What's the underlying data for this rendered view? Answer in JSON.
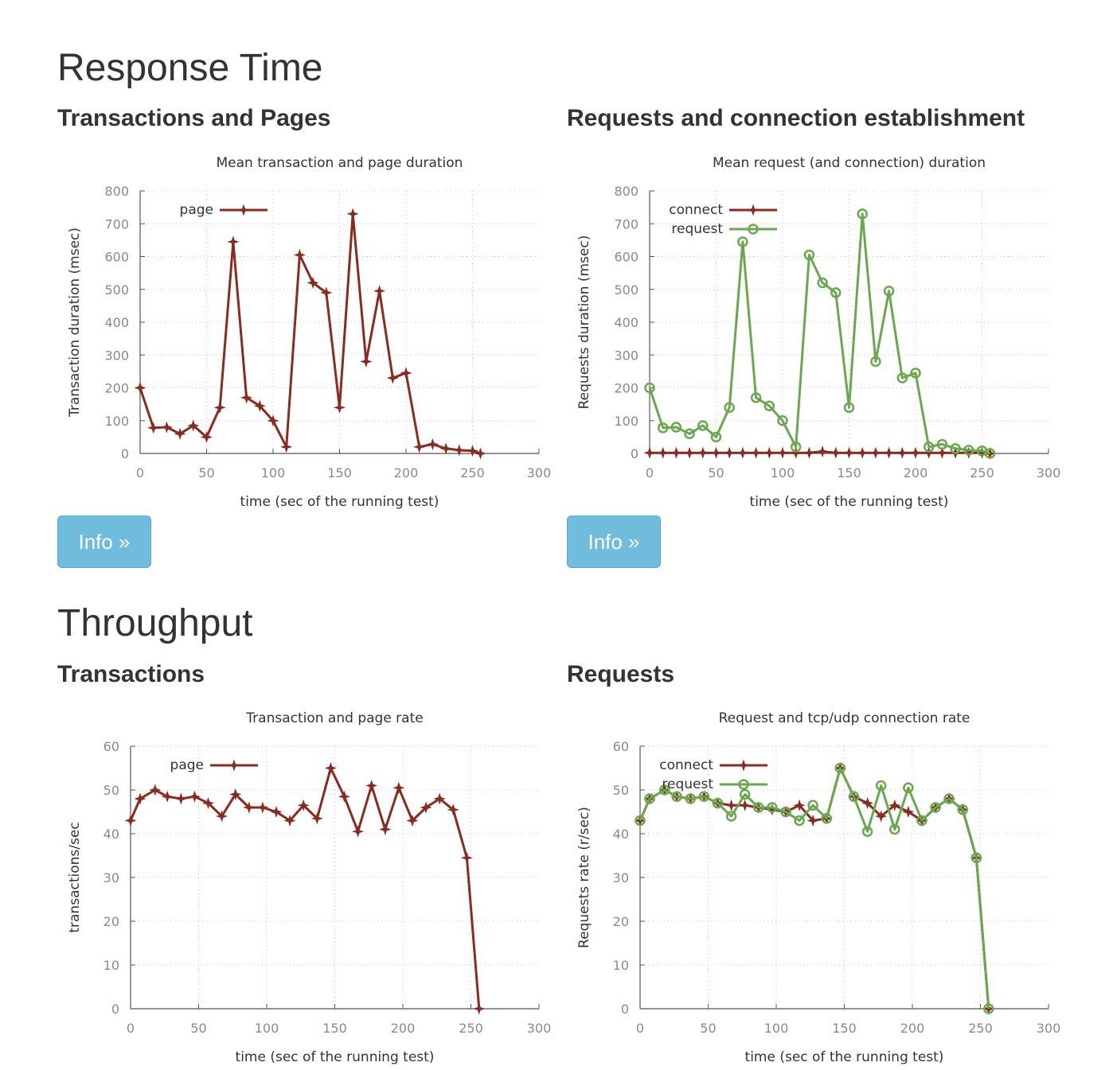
{
  "sections": {
    "response_time": "Response Time",
    "throughput": "Throughput"
  },
  "panels": {
    "transactions_pages": "Transactions and Pages",
    "requests_connection": "Requests and connection establishment",
    "transactions": "Transactions",
    "requests": "Requests"
  },
  "buttons": {
    "info_label": "Info »"
  },
  "colors": {
    "page": "#8b2a1e",
    "connect": "#8b2a1e",
    "request": "#6aa84f"
  },
  "chart_data": [
    {
      "type": "line",
      "title": "Mean transaction and page duration",
      "xlabel": "time (sec of the running test)",
      "ylabel": "Transaction duration (msec)",
      "xlim": [
        0,
        300
      ],
      "ylim": [
        0,
        800
      ],
      "xticks": [
        0,
        50,
        100,
        150,
        200,
        250,
        300
      ],
      "yticks": [
        0,
        100,
        200,
        300,
        400,
        500,
        600,
        700,
        800
      ],
      "grid": true,
      "legend": "top-left",
      "x": [
        0,
        10,
        20,
        30,
        40,
        50,
        60,
        70,
        80,
        90,
        100,
        110,
        120,
        130,
        140,
        150,
        160,
        170,
        180,
        190,
        200,
        210,
        220,
        230,
        240,
        250,
        256
      ],
      "series": [
        {
          "name": "page",
          "color": "#8b2a1e",
          "marker": "star",
          "values": [
            200,
            78,
            80,
            60,
            85,
            50,
            140,
            645,
            170,
            145,
            100,
            20,
            605,
            520,
            490,
            140,
            730,
            280,
            495,
            230,
            245,
            20,
            28,
            15,
            10,
            8,
            0
          ]
        }
      ]
    },
    {
      "type": "line",
      "title": "Mean request (and connection) duration",
      "xlabel": "time (sec of the running test)",
      "ylabel": "Requests duration (msec)",
      "xlim": [
        0,
        300
      ],
      "ylim": [
        0,
        800
      ],
      "xticks": [
        0,
        50,
        100,
        150,
        200,
        250,
        300
      ],
      "yticks": [
        0,
        100,
        200,
        300,
        400,
        500,
        600,
        700,
        800
      ],
      "grid": true,
      "legend": "top-left",
      "x": [
        0,
        10,
        20,
        30,
        40,
        50,
        60,
        70,
        80,
        90,
        100,
        110,
        120,
        130,
        140,
        150,
        160,
        170,
        180,
        190,
        200,
        210,
        220,
        230,
        240,
        250,
        256
      ],
      "series": [
        {
          "name": "connect",
          "color": "#8b2a1e",
          "marker": "star",
          "values": [
            2,
            2,
            2,
            2,
            2,
            2,
            2,
            2,
            2,
            2,
            2,
            2,
            2,
            6,
            2,
            2,
            2,
            2,
            2,
            2,
            2,
            2,
            2,
            2,
            2,
            2,
            0
          ]
        },
        {
          "name": "request",
          "color": "#6aa84f",
          "marker": "circle",
          "values": [
            200,
            78,
            80,
            60,
            85,
            50,
            140,
            645,
            170,
            145,
            100,
            20,
            605,
            520,
            490,
            140,
            730,
            280,
            495,
            230,
            245,
            20,
            28,
            15,
            10,
            8,
            0
          ]
        }
      ]
    },
    {
      "type": "line",
      "title": "Transaction and page rate",
      "xlabel": "time (sec of the running test)",
      "ylabel": "transactions/sec",
      "xlim": [
        0,
        300
      ],
      "ylim": [
        0,
        60
      ],
      "xticks": [
        0,
        50,
        100,
        150,
        200,
        250,
        300
      ],
      "yticks": [
        0,
        10,
        20,
        30,
        40,
        50,
        60
      ],
      "grid": true,
      "legend": "top-left",
      "x": [
        0,
        7,
        18,
        27,
        37,
        47,
        57,
        67,
        77,
        87,
        97,
        107,
        117,
        127,
        137,
        147,
        157,
        167,
        177,
        187,
        197,
        207,
        217,
        227,
        237,
        247,
        256
      ],
      "series": [
        {
          "name": "page",
          "color": "#8b2a1e",
          "marker": "star",
          "values": [
            43,
            48,
            50,
            48.5,
            48,
            48.5,
            47,
            44,
            49,
            46,
            46,
            45,
            43,
            46.5,
            43.5,
            55,
            48.5,
            40.5,
            51,
            41,
            50.5,
            43,
            46,
            48,
            45.5,
            34.5,
            0
          ]
        }
      ]
    },
    {
      "type": "line",
      "title": "Request and tcp/udp connection rate",
      "xlabel": "time (sec of the running test)",
      "ylabel": "Requests rate (r/sec)",
      "xlim": [
        0,
        300
      ],
      "ylim": [
        0,
        60
      ],
      "xticks": [
        0,
        50,
        100,
        150,
        200,
        250,
        300
      ],
      "yticks": [
        0,
        10,
        20,
        30,
        40,
        50,
        60
      ],
      "grid": true,
      "legend": "top-left",
      "x": [
        0,
        7,
        18,
        27,
        37,
        47,
        57,
        67,
        77,
        87,
        97,
        107,
        117,
        127,
        137,
        147,
        157,
        167,
        177,
        187,
        197,
        207,
        217,
        227,
        237,
        247,
        256
      ],
      "series": [
        {
          "name": "connect",
          "color": "#8b2a1e",
          "marker": "star",
          "values": [
            43,
            48,
            50,
            48.5,
            48,
            48.5,
            47,
            46.5,
            46.5,
            46,
            45.5,
            45,
            46.5,
            43,
            43.5,
            55,
            48.5,
            47,
            44,
            46.5,
            45,
            43,
            46,
            48,
            45.5,
            34.5,
            0
          ]
        },
        {
          "name": "request",
          "color": "#6aa84f",
          "marker": "circle",
          "values": [
            43,
            48,
            50,
            48.5,
            48,
            48.5,
            47,
            44,
            49,
            46,
            46,
            45,
            43,
            46.5,
            43.5,
            55,
            48.5,
            40.5,
            51,
            41,
            50.5,
            43,
            46,
            48,
            45.5,
            34.5,
            0
          ]
        }
      ]
    }
  ]
}
